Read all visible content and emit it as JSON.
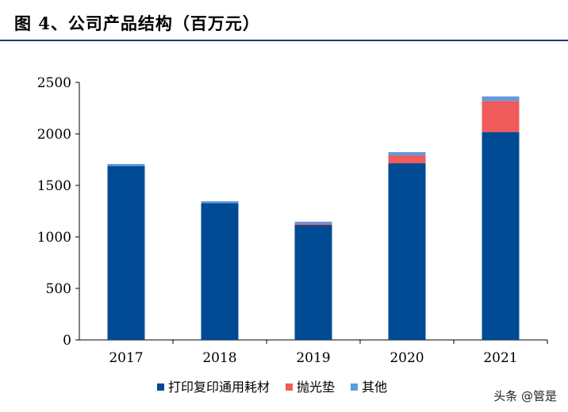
{
  "title": "图 4、公司产品结构（百万元）",
  "watermark": "头条 @管是",
  "chart_data": {
    "type": "bar",
    "stacked": true,
    "categories": [
      "2017",
      "2018",
      "2019",
      "2020",
      "2021"
    ],
    "series": [
      {
        "name": "打印复印通用耗材",
        "color": "#004a94",
        "values": [
          1688,
          1328,
          1118,
          1715,
          2018
        ]
      },
      {
        "name": "抛光垫",
        "color": "#ef5b5b",
        "values": [
          0,
          0,
          12,
          77,
          303
        ]
      },
      {
        "name": "其他",
        "color": "#5e9be0",
        "values": [
          20,
          18,
          18,
          31,
          43
        ]
      }
    ],
    "ylim": [
      0,
      2500
    ],
    "yticks": [
      0,
      500,
      1000,
      1500,
      2000,
      2500
    ],
    "grid": false,
    "legend": "bottom"
  }
}
